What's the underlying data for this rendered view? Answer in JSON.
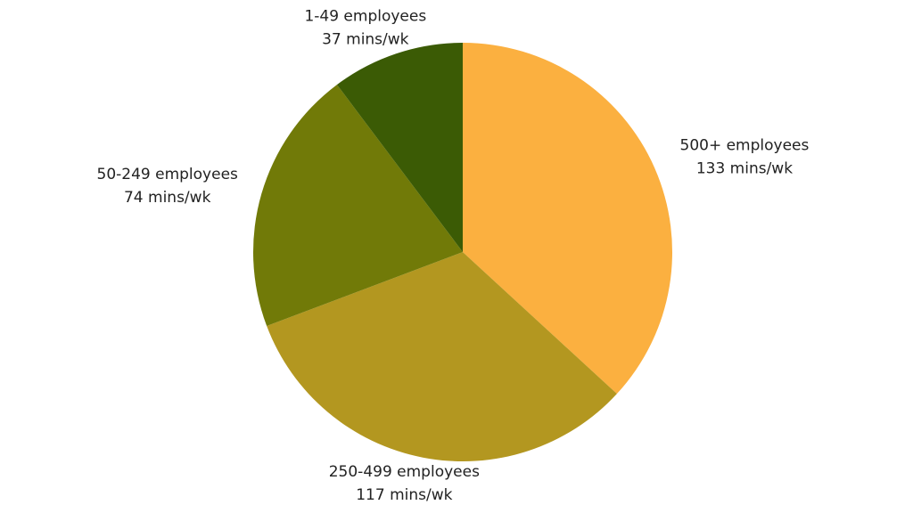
{
  "chart_data": {
    "type": "pie",
    "categories": [
      "500+ employees",
      "250-499 employees",
      "50-249 employees",
      "1-49 employees"
    ],
    "values": [
      133,
      117,
      74,
      37
    ],
    "value_labels": [
      "133 mins/wk",
      "117 mins/wk",
      "74 mins/wk",
      "37 mins/wk"
    ],
    "colors": [
      "#fbb040",
      "#b39720",
      "#717a08",
      "#3b5b05"
    ]
  }
}
